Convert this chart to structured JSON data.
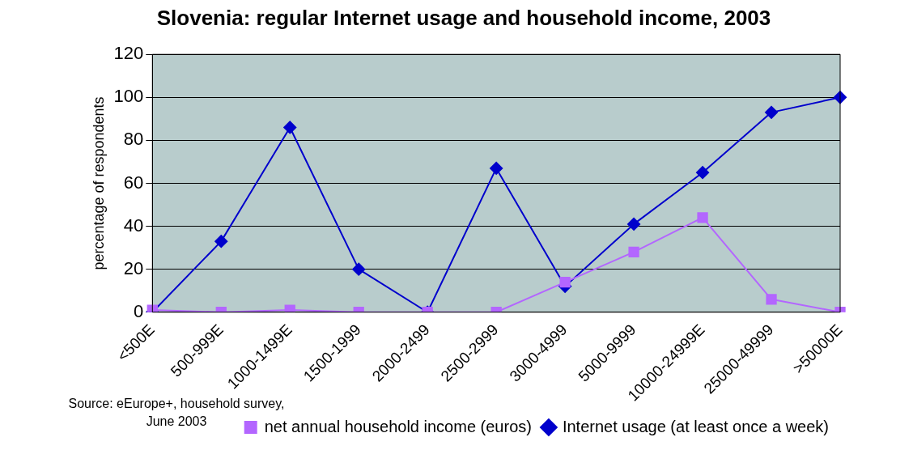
{
  "chart_data": {
    "type": "line",
    "title": "Slovenia: regular Internet usage and household income, 2003",
    "ylabel": "percentage of respondents",
    "categories": [
      "<500E",
      "500-999E",
      "1000-1499E",
      "1500-1999",
      "2000-2499",
      "2500-2999",
      "3000-4999",
      "5000-9999",
      "10000-24999E",
      "25000-49999",
      ">50000E"
    ],
    "series": [
      {
        "name": "Internet usage (at least once a week)",
        "color": "#0000cc",
        "marker": "diamond",
        "values": [
          0,
          33,
          86,
          20,
          0,
          67,
          12,
          41,
          65,
          93,
          100
        ]
      },
      {
        "name": "net annual household income (euros)",
        "color": "#b366ff",
        "marker": "square",
        "values": [
          1,
          0,
          1,
          0,
          0,
          0,
          14,
          28,
          44,
          6,
          0
        ]
      }
    ],
    "ylim": [
      0,
      120
    ],
    "yticks": [
      0,
      20,
      40,
      60,
      80,
      100,
      120
    ],
    "grid": "y",
    "legend": "bottom right",
    "annotations": [
      "Source: eEurope+, household survey, June 2003"
    ]
  }
}
